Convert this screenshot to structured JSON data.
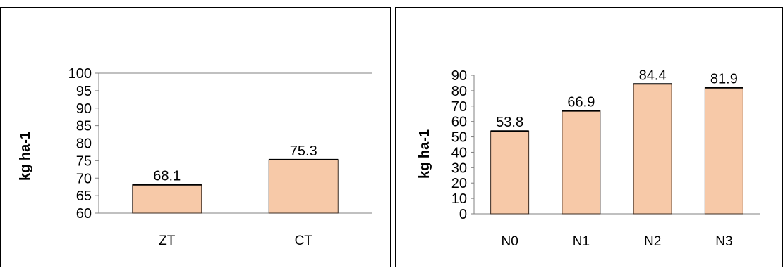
{
  "colors": {
    "bar_fill": "#f7c9a8",
    "bar_stroke": "#3a2a20",
    "axis": "#808080"
  },
  "chart_data": [
    {
      "type": "bar",
      "categories": [
        "ZT",
        "CT"
      ],
      "values": [
        68.1,
        75.3
      ],
      "data_labels": [
        "68.1",
        "75.3"
      ],
      "title": "",
      "xlabel": "",
      "ylabel": "kg ha-1",
      "ylim": [
        60,
        100
      ],
      "yticks": [
        60,
        65,
        70,
        75,
        80,
        85,
        90,
        95,
        100
      ],
      "grid": false
    },
    {
      "type": "bar",
      "categories": [
        "N0",
        "N1",
        "N2",
        "N3"
      ],
      "values": [
        53.8,
        66.9,
        84.4,
        81.9
      ],
      "data_labels": [
        "53.8",
        "66.9",
        "84.4",
        "81.9"
      ],
      "title": "",
      "xlabel": "",
      "ylabel": "kg ha-1",
      "ylim": [
        0,
        90
      ],
      "yticks": [
        0,
        10,
        20,
        30,
        40,
        50,
        60,
        70,
        80,
        90
      ],
      "grid": false
    }
  ]
}
